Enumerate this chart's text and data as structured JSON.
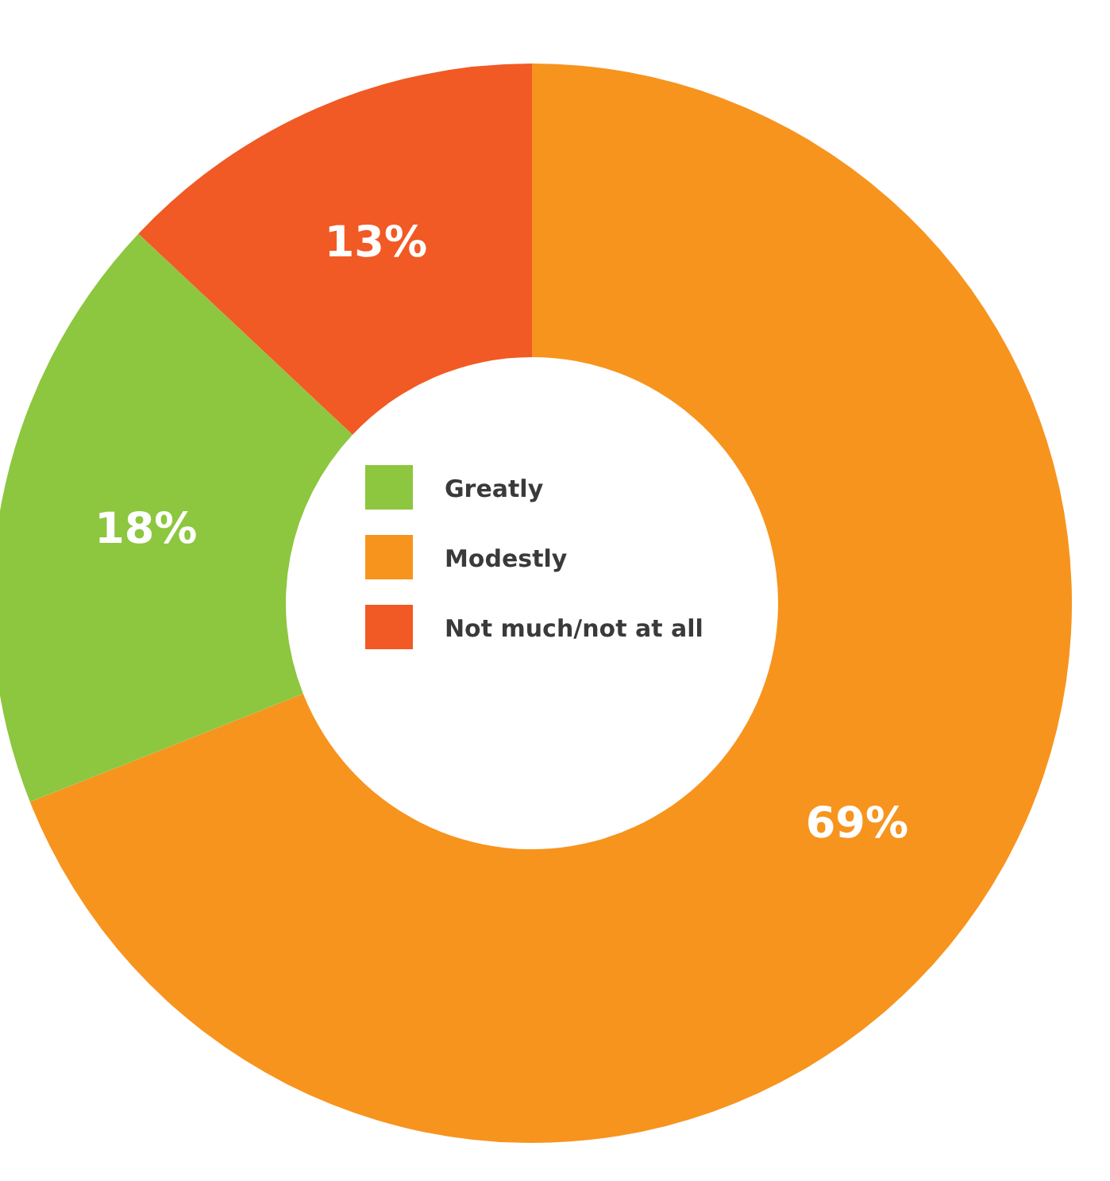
{
  "chart_data": {
    "type": "donut",
    "categories": [
      "Modestly",
      "Greatly",
      "Not much/not at all"
    ],
    "values": [
      69,
      18,
      13
    ],
    "value_labels": [
      "69%",
      "18%",
      "13%"
    ],
    "colors": [
      "#f7941e",
      "#8dc63f",
      "#f15a24"
    ],
    "legend": "center"
  }
}
